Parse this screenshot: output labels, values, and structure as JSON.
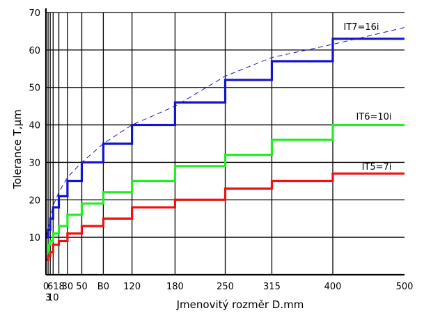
{
  "chart_data": {
    "type": "line",
    "xlabel": "Jmenovitý rozměr D.mm",
    "ylabel": "Tolerance T,μm",
    "xlim": [
      0,
      500
    ],
    "ylim": [
      0,
      70
    ],
    "x_ticks": [
      0,
      6,
      18,
      30,
      50,
      80,
      120,
      180,
      250,
      315,
      400,
      500
    ],
    "x_ticks_second_row": [
      3,
      10
    ],
    "x_tick_labels": {
      "0": "0",
      "6": "6",
      "18": "18",
      "30": "30",
      "50": "50",
      "80": "B0",
      "120": "120",
      "180": "180",
      "250": "250",
      "315": "315",
      "400": "400",
      "500": "500",
      "3": "3",
      "10": "10"
    },
    "y_ticks": [
      10,
      20,
      30,
      40,
      50,
      60,
      70
    ],
    "vertical_grid_x": [
      3,
      6,
      10,
      18,
      30,
      50,
      80,
      120,
      180,
      250,
      315,
      400
    ],
    "grid": true,
    "size_boundaries": [
      0,
      3,
      6,
      10,
      18,
      30,
      50,
      80,
      120,
      180,
      250,
      315,
      400,
      500
    ],
    "series": [
      {
        "name": "IT7=16i",
        "color": "#1414cc",
        "style": "step",
        "values": [
          10,
          12,
          15,
          18,
          21,
          25,
          30,
          35,
          40,
          46,
          52,
          57,
          63
        ]
      },
      {
        "name": "IT6=10i",
        "color": "#22ee22",
        "style": "step",
        "values": [
          6,
          8,
          9,
          11,
          13,
          16,
          19,
          22,
          25,
          29,
          32,
          36,
          40
        ]
      },
      {
        "name": "IT5=7i",
        "color": "#ee1111",
        "style": "step",
        "values": [
          4,
          5,
          6,
          8,
          9,
          11,
          13,
          15,
          18,
          20,
          23,
          25,
          27
        ]
      },
      {
        "style": "dashed",
        "color": "#1414cc",
        "formula_points": {
          "x": [
            0,
            3,
            6,
            10,
            18,
            30,
            50,
            80,
            120,
            180,
            250,
            315,
            400,
            500
          ],
          "y": [
            10,
            12.5,
            15,
            18.5,
            22,
            26,
            30,
            35,
            40,
            45,
            53,
            58,
            61.5,
            66
          ]
        }
      }
    ]
  }
}
